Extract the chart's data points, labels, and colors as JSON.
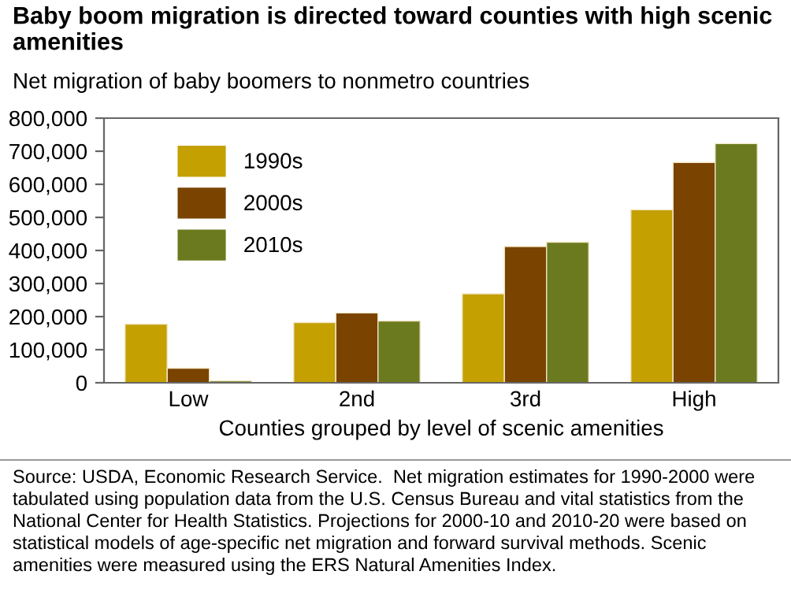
{
  "chart_data": {
    "type": "bar",
    "title": "Baby boom migration is directed toward counties with high scenic amenities",
    "subtitle": "Net migration of baby boomers to nonmetro countries",
    "xlabel": "Counties grouped by level of scenic amenities",
    "categories": [
      "Low",
      "2nd",
      "3rd",
      "High"
    ],
    "series": [
      {
        "name": "1990s",
        "color": "#c4a000",
        "values": [
          177000,
          182000,
          269000,
          523000
        ]
      },
      {
        "name": "2000s",
        "color": "#7a4300",
        "values": [
          44000,
          211000,
          412000,
          666000
        ]
      },
      {
        "name": "2010s",
        "color": "#6b7a1e",
        "values": [
          6000,
          187000,
          425000,
          723000
        ]
      }
    ],
    "ylim": [
      0,
      800000
    ],
    "yticks": [
      {
        "value": 0,
        "label": "0"
      },
      {
        "value": 100000,
        "label": "100,000"
      },
      {
        "value": 200000,
        "label": "200,000"
      },
      {
        "value": 300000,
        "label": "300,000"
      },
      {
        "value": 400000,
        "label": "400,000"
      },
      {
        "value": 500000,
        "label": "500,000"
      },
      {
        "value": 600000,
        "label": "600,000"
      },
      {
        "value": 700000,
        "label": "700,000"
      },
      {
        "value": 800000,
        "label": "800,000"
      }
    ],
    "grid": false,
    "legend": "top left",
    "annotations": [
      "Source: USDA, Economic Research Service.  Net migration estimates for 1990-2000 were tabulated using population data from the U.S. Census Bureau and vital statistics from the National Center for Health Statistics. Projections for 2000-10 and 2010-20 were based on statistical models of age-specific net migration and forward survival methods. Scenic amenities were measured using the ERS Natural Amenities Index."
    ]
  }
}
